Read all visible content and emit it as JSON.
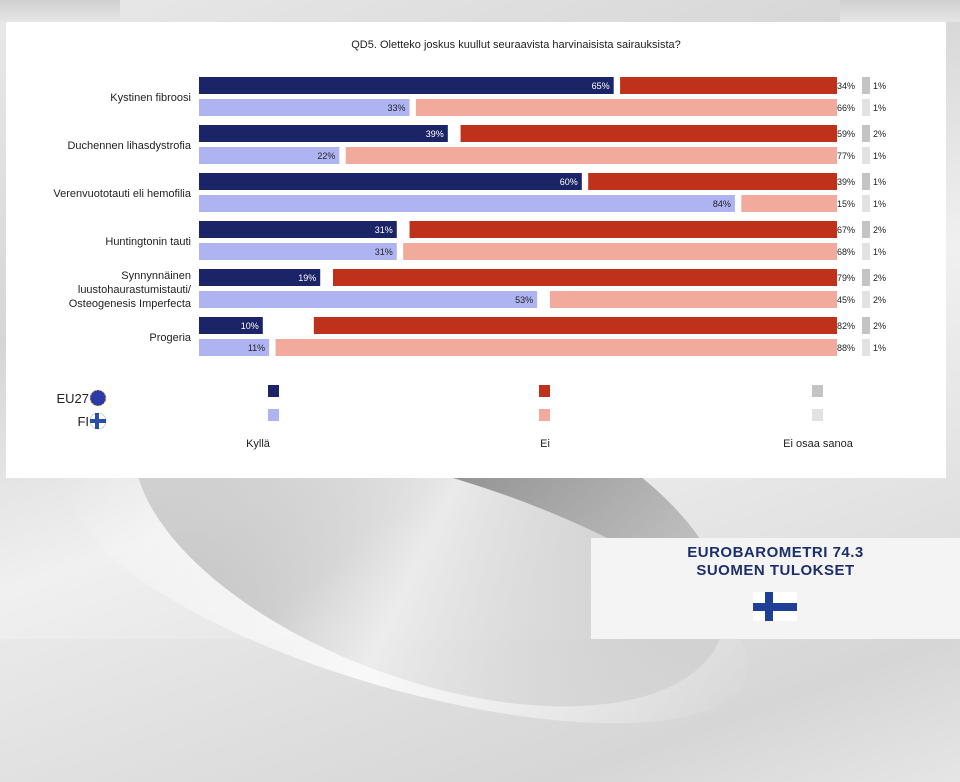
{
  "chart_data": {
    "type": "bar",
    "orientation": "horizontal",
    "stacked": true,
    "title": "QD5. Oletteko joskus kuullut seuraavista harvinaisista sairauksista?",
    "categories": [
      "Kystinen fibroosi",
      "Duchennen lihasdystrofia",
      "Verenvuototauti eli hemofilia",
      "Huntingtonin tauti",
      "Synnynnäinen luustohaurastumistauti/ Osteogenesis Imperfecta",
      "Progeria"
    ],
    "category_lines": [
      [
        "Kystinen fibroosi"
      ],
      [
        "Duchennen lihasdystrofia"
      ],
      [
        "Verenvuototauti eli hemofilia"
      ],
      [
        "Huntingtonin tauti"
      ],
      [
        "Synnynnäinen",
        "luustohaurastumistauti/",
        "Osteogenesis Imperfecta"
      ],
      [
        "Progeria"
      ]
    ],
    "groups": [
      {
        "name": "EU27",
        "kylla": [
          65,
          39,
          60,
          31,
          19,
          10
        ],
        "ei": [
          34,
          59,
          39,
          67,
          79,
          82
        ],
        "eos": [
          1,
          2,
          1,
          2,
          2,
          2
        ]
      },
      {
        "name": "FI",
        "kylla": [
          33,
          22,
          84,
          31,
          53,
          11
        ],
        "ei": [
          66,
          77,
          15,
          68,
          45,
          88
        ],
        "eos": [
          1,
          1,
          1,
          1,
          2,
          1
        ]
      }
    ],
    "series_names": [
      "Kyllä",
      "Ei",
      "Ei osaa sanoa"
    ],
    "unit": "%",
    "legend": "bottom",
    "colors": {
      "eu_kylla": "#1b2466",
      "eu_ei": "#c0311b",
      "eu_eos": "#c4c4c4",
      "fi_kylla": "#aeb4f2",
      "fi_ei": "#f2aa9c",
      "fi_eos": "#e2e2e2"
    }
  },
  "legend": {
    "eu_label": "EU27",
    "fi_label": "FI",
    "kylla": "Kyllä",
    "ei": "Ei",
    "eos": "Ei osaa sanoa"
  },
  "branding": {
    "line1": "EUROBAROMETRI 74.3",
    "line2": "SUOMEN TULOKSET"
  }
}
